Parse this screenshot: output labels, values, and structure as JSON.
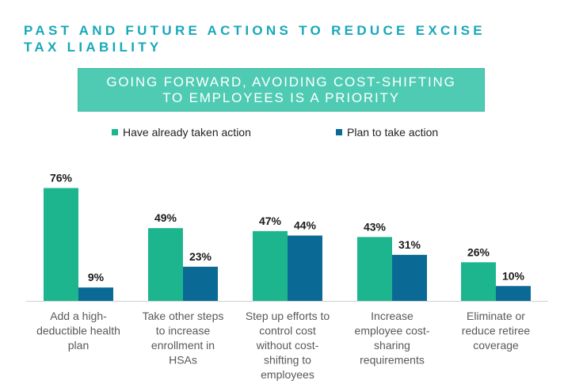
{
  "title": {
    "line1": "PAST AND FUTURE ACTIONS TO REDUCE EXCISE",
    "line2": "TAX LIABILITY"
  },
  "banner": {
    "line1": "GOING FORWARD, AVOIDING  COST-SHIFTING",
    "line2": "TO EMPLOYEES IS A PRIORITY"
  },
  "colors": {
    "series1": "#1DB58E",
    "series2": "#0B6A95",
    "title": "#17A9B8",
    "banner": "#4FCBB3"
  },
  "chart_data": {
    "type": "bar",
    "categories": [
      [
        "Add a high-",
        "deductible health",
        "plan"
      ],
      [
        "Take other steps",
        "to increase",
        "enrollment in",
        "HSAs"
      ],
      [
        "Step up efforts to",
        "control cost",
        "without cost-",
        "shifting to",
        "employees"
      ],
      [
        "Increase",
        "employee cost-",
        "sharing",
        "requirements"
      ],
      [
        "Eliminate or",
        "reduce retiree",
        "coverage"
      ]
    ],
    "series": [
      {
        "name": "Have already taken action",
        "values": [
          76,
          49,
          47,
          43,
          26
        ],
        "labels": [
          "76%",
          "49%",
          "47%",
          "43%",
          "26%"
        ]
      },
      {
        "name": "Plan to take action",
        "values": [
          9,
          23,
          44,
          31,
          10
        ],
        "labels": [
          "9%",
          "23%",
          "44%",
          "31%",
          "10%"
        ]
      }
    ],
    "ylim": [
      0,
      100
    ],
    "legend_position": "top",
    "grid": false
  }
}
